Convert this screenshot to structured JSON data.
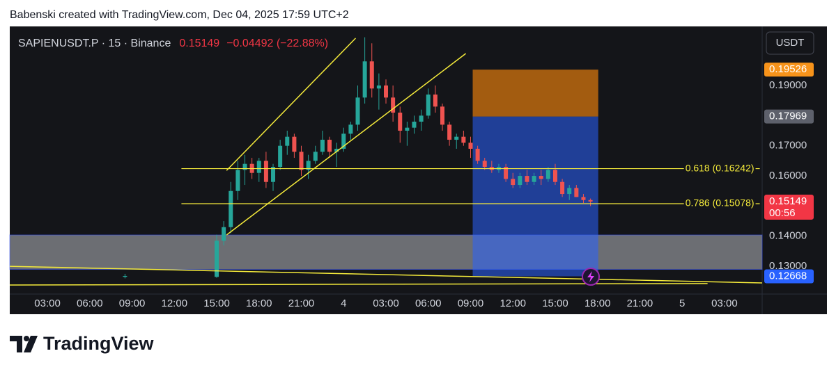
{
  "attribution": "Babenski created with TradingView.com, Dec 04, 2025 17:59 UTC+2",
  "logo": "TradingView",
  "chart_data": {
    "type": "candlestick",
    "symbol": "SAPIENUSDT.P · 15 · Binance",
    "last_price": "0.15149",
    "change": "−0.04492 (−22.88%)",
    "currency": "USDT",
    "x": [
      8.5,
      15,
      15.5,
      16,
      16.5,
      17,
      17.5,
      18,
      18.5,
      19,
      19.5,
      20,
      20.5,
      21,
      21.5,
      22,
      22.5,
      23,
      23.5,
      24,
      24.5,
      25,
      25.5,
      26,
      26.5,
      27,
      27.5,
      28,
      28.5,
      29,
      29.5,
      30,
      30.5,
      31,
      31.5,
      32,
      32.5,
      33,
      33.5,
      34,
      34.5,
      35,
      35.5,
      36,
      36.5,
      37,
      37.5,
      38,
      38.5,
      39,
      39.5,
      40,
      40.5,
      41,
      41.5
    ],
    "open": [
      0.1265,
      0.1265,
      0.1385,
      0.143,
      0.155,
      0.162,
      0.164,
      0.161,
      0.165,
      0.158,
      0.163,
      0.17,
      0.173,
      0.168,
      0.162,
      0.165,
      0.168,
      0.172,
      0.168,
      0.169,
      0.174,
      0.177,
      0.186,
      0.198,
      0.189,
      0.19,
      0.186,
      0.181,
      0.175,
      0.176,
      0.178,
      0.18,
      0.187,
      0.183,
      0.177,
      0.172,
      0.173,
      0.171,
      0.169,
      0.165,
      0.163,
      0.162,
      0.163,
      0.159,
      0.157,
      0.16,
      0.158,
      0.16,
      0.159,
      0.162,
      0.158,
      0.154,
      0.156,
      0.153,
      0.152
    ],
    "high": [
      0.1275,
      0.1405,
      0.145,
      0.158,
      0.165,
      0.167,
      0.166,
      0.166,
      0.168,
      0.164,
      0.172,
      0.175,
      0.174,
      0.17,
      0.167,
      0.17,
      0.175,
      0.173,
      0.171,
      0.176,
      0.178,
      0.19,
      0.206,
      0.204,
      0.194,
      0.192,
      0.19,
      0.183,
      0.178,
      0.18,
      0.182,
      0.189,
      0.19,
      0.184,
      0.178,
      0.174,
      0.175,
      0.173,
      0.17,
      0.166,
      0.165,
      0.164,
      0.164,
      0.161,
      0.161,
      0.162,
      0.161,
      0.162,
      0.163,
      0.164,
      0.159,
      0.157,
      0.157,
      0.154,
      0.1525
    ],
    "low": [
      0.126,
      0.1262,
      0.137,
      0.141,
      0.152,
      0.157,
      0.159,
      0.158,
      0.156,
      0.155,
      0.162,
      0.167,
      0.166,
      0.16,
      0.159,
      0.164,
      0.167,
      0.166,
      0.163,
      0.168,
      0.172,
      0.175,
      0.184,
      0.186,
      0.182,
      0.184,
      0.178,
      0.171,
      0.17,
      0.174,
      0.175,
      0.179,
      0.181,
      0.175,
      0.17,
      0.169,
      0.17,
      0.166,
      0.164,
      0.162,
      0.161,
      0.161,
      0.158,
      0.156,
      0.156,
      0.157,
      0.157,
      0.157,
      0.158,
      0.157,
      0.153,
      0.152,
      0.153,
      0.151,
      0.15
    ],
    "close": [
      0.1268,
      0.1385,
      0.143,
      0.155,
      0.162,
      0.164,
      0.161,
      0.165,
      0.158,
      0.163,
      0.17,
      0.173,
      0.168,
      0.162,
      0.165,
      0.168,
      0.172,
      0.168,
      0.169,
      0.174,
      0.177,
      0.186,
      0.198,
      0.189,
      0.19,
      0.186,
      0.181,
      0.175,
      0.176,
      0.178,
      0.18,
      0.187,
      0.183,
      0.177,
      0.172,
      0.173,
      0.171,
      0.169,
      0.165,
      0.163,
      0.162,
      0.163,
      0.159,
      0.157,
      0.16,
      0.158,
      0.16,
      0.159,
      0.162,
      0.158,
      0.154,
      0.156,
      0.153,
      0.152,
      0.15149
    ],
    "xlim": [
      0.33,
      53.67
    ],
    "ylim": [
      0.1208,
      0.2096
    ],
    "xticks": [
      {
        "value": 3,
        "label": "03:00"
      },
      {
        "value": 6,
        "label": "06:00"
      },
      {
        "value": 9,
        "label": "09:00"
      },
      {
        "value": 12,
        "label": "12:00"
      },
      {
        "value": 15,
        "label": "15:00"
      },
      {
        "value": 18,
        "label": "18:00"
      },
      {
        "value": 21,
        "label": "21:00"
      },
      {
        "value": 24,
        "label": "4"
      },
      {
        "value": 27,
        "label": "03:00"
      },
      {
        "value": 30,
        "label": "06:00"
      },
      {
        "value": 33,
        "label": "09:00"
      },
      {
        "value": 36,
        "label": "12:00"
      },
      {
        "value": 39,
        "label": "15:00"
      },
      {
        "value": 42,
        "label": "18:00"
      },
      {
        "value": 45,
        "label": "21:00"
      },
      {
        "value": 48,
        "label": "5"
      },
      {
        "value": 51,
        "label": "03:00"
      }
    ],
    "yticks": [
      {
        "value": 0.13,
        "label": "0.13000"
      },
      {
        "value": 0.14,
        "label": "0.14000"
      },
      {
        "value": 0.16,
        "label": "0.16000"
      },
      {
        "value": 0.17,
        "label": "0.17000"
      },
      {
        "value": 0.19,
        "label": "0.19000"
      }
    ],
    "up_color": "#26a69a",
    "down_color": "#ef5350",
    "fib_levels": [
      {
        "value": 0.16242,
        "label": "0.618 (0.16242)"
      },
      {
        "value": 0.15078,
        "label": "0.786 (0.15078)"
      }
    ],
    "fib_x": [
      12.5,
      53.5
    ],
    "price_tags": [
      {
        "value": 0.19526,
        "label": "0.19526",
        "color": "#f7931a"
      },
      {
        "value": 0.17969,
        "label": "0.17969",
        "color": "#5d606b"
      },
      {
        "value": 0.15149,
        "label": "0.15149",
        "sublabel": "00:56",
        "color": "#f23645"
      },
      {
        "value": 0.12668,
        "label": "0.12668",
        "color": "#2962ff"
      }
    ],
    "position": {
      "x": [
        33.15,
        42.05
      ],
      "stop": 0.19526,
      "entry": 0.17969,
      "target": 0.12668
    },
    "zone": {
      "y": [
        0.129,
        0.1404
      ]
    },
    "trend_lines": [
      [
        [
          15.7,
          0.1618
        ],
        [
          24.85,
          0.2057
        ]
      ],
      [
        [
          15.7,
          0.1404
        ],
        [
          32.66,
          0.2006
        ]
      ],
      [
        [
          0.33,
          0.13
        ],
        [
          53.67,
          0.1245
        ]
      ],
      [
        [
          0.33,
          0.1238
        ],
        [
          49.8,
          0.1243
        ]
      ]
    ]
  }
}
